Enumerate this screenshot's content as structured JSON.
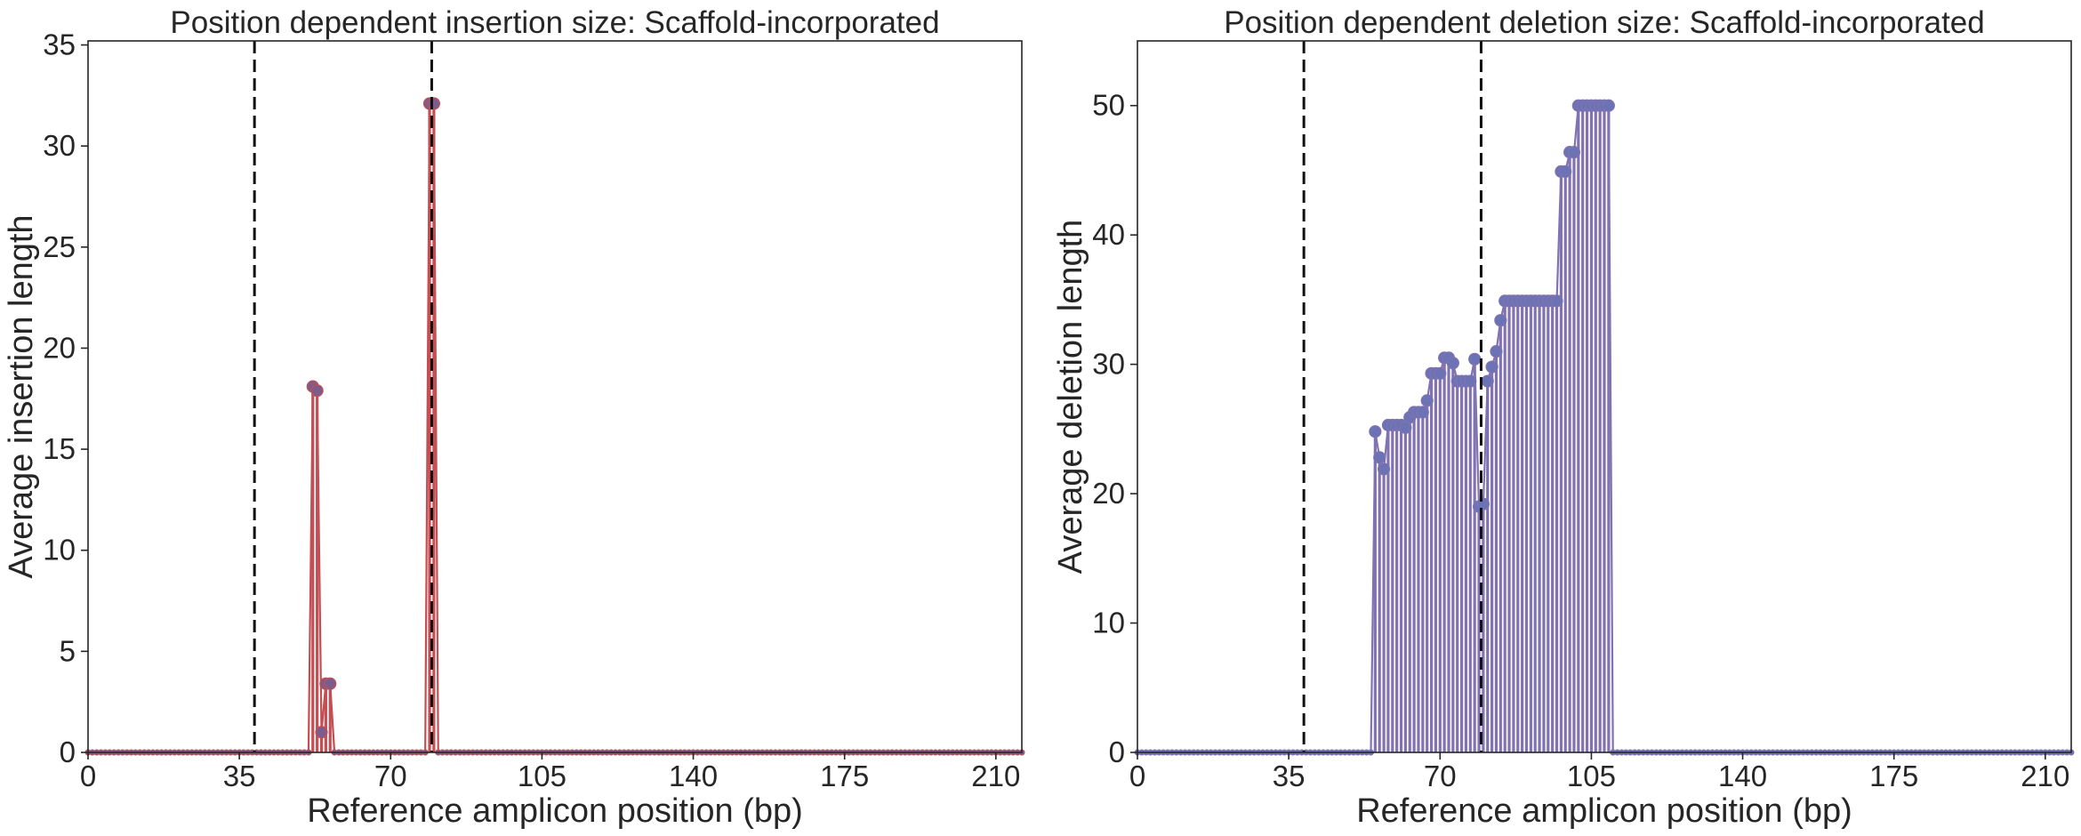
{
  "chart_data": [
    {
      "type": "line",
      "subtype": "stem",
      "title": "Position dependent insertion size: Scaffold-incorporated",
      "xlabel": "Reference amplicon position (bp)",
      "ylabel": "Average insertion length",
      "xlim": [
        0,
        216
      ],
      "ylim": [
        0,
        35.2
      ],
      "xticks": [
        0,
        35,
        70,
        105,
        140,
        175,
        210
      ],
      "yticks": [
        0,
        5,
        10,
        15,
        20,
        25,
        30,
        35
      ],
      "vlines": [
        38.5,
        79.5
      ],
      "color": "#c44e52",
      "marker_color": "#7f5b8c",
      "grid": false,
      "baseline_points": "all positions 0–216 at 0",
      "points": [
        {
          "x": 52,
          "y": 18.1
        },
        {
          "x": 53,
          "y": 17.9
        },
        {
          "x": 54,
          "y": 1.0
        },
        {
          "x": 55,
          "y": 3.4
        },
        {
          "x": 56,
          "y": 3.4
        },
        {
          "x": 79,
          "y": 32.1
        },
        {
          "x": 80,
          "y": 32.1
        }
      ]
    },
    {
      "type": "line",
      "subtype": "stem",
      "title": "Position dependent deletion size: Scaffold-incorporated",
      "xlabel": "Reference amplicon position (bp)",
      "ylabel": "Average deletion length",
      "xlim": [
        0,
        216
      ],
      "ylim": [
        0,
        55
      ],
      "xticks": [
        0,
        35,
        70,
        105,
        140,
        175,
        210
      ],
      "yticks": [
        0,
        10,
        20,
        30,
        40,
        50
      ],
      "vlines": [
        38.5,
        79.5
      ],
      "color": "#8172b2",
      "marker_color": "#6c73b4",
      "grid": false,
      "baseline_points": "all positions 0–216 at 0",
      "points": [
        {
          "x": 55,
          "y": 24.8
        },
        {
          "x": 56,
          "y": 22.8
        },
        {
          "x": 57,
          "y": 21.9
        },
        {
          "x": 58,
          "y": 25.3
        },
        {
          "x": 59,
          "y": 25.3
        },
        {
          "x": 60,
          "y": 25.3
        },
        {
          "x": 61,
          "y": 25.3
        },
        {
          "x": 62,
          "y": 25.1
        },
        {
          "x": 63,
          "y": 25.9
        },
        {
          "x": 64,
          "y": 26.3
        },
        {
          "x": 65,
          "y": 26.3
        },
        {
          "x": 66,
          "y": 26.3
        },
        {
          "x": 67,
          "y": 27.2
        },
        {
          "x": 68,
          "y": 29.3
        },
        {
          "x": 69,
          "y": 29.3
        },
        {
          "x": 70,
          "y": 29.3
        },
        {
          "x": 71,
          "y": 30.5
        },
        {
          "x": 72,
          "y": 30.5
        },
        {
          "x": 73,
          "y": 30.1
        },
        {
          "x": 74,
          "y": 28.7
        },
        {
          "x": 75,
          "y": 28.7
        },
        {
          "x": 76,
          "y": 28.7
        },
        {
          "x": 77,
          "y": 28.7
        },
        {
          "x": 78,
          "y": 30.4
        },
        {
          "x": 79,
          "y": 19.0
        },
        {
          "x": 80,
          "y": 19.2
        },
        {
          "x": 81,
          "y": 28.7
        },
        {
          "x": 82,
          "y": 29.8
        },
        {
          "x": 83,
          "y": 31.0
        },
        {
          "x": 84,
          "y": 33.4
        },
        {
          "x": 85,
          "y": 34.9
        },
        {
          "x": 86,
          "y": 34.9
        },
        {
          "x": 87,
          "y": 34.9
        },
        {
          "x": 88,
          "y": 34.9
        },
        {
          "x": 89,
          "y": 34.9
        },
        {
          "x": 90,
          "y": 34.9
        },
        {
          "x": 91,
          "y": 34.9
        },
        {
          "x": 92,
          "y": 34.9
        },
        {
          "x": 93,
          "y": 34.9
        },
        {
          "x": 94,
          "y": 34.9
        },
        {
          "x": 95,
          "y": 34.9
        },
        {
          "x": 96,
          "y": 34.9
        },
        {
          "x": 97,
          "y": 34.9
        },
        {
          "x": 98,
          "y": 44.9
        },
        {
          "x": 99,
          "y": 44.9
        },
        {
          "x": 100,
          "y": 46.4
        },
        {
          "x": 101,
          "y": 46.4
        },
        {
          "x": 102,
          "y": 50.0
        },
        {
          "x": 103,
          "y": 50.0
        },
        {
          "x": 104,
          "y": 50.0
        },
        {
          "x": 105,
          "y": 50.0
        },
        {
          "x": 106,
          "y": 50.0
        },
        {
          "x": 107,
          "y": 50.0
        },
        {
          "x": 108,
          "y": 50.0
        },
        {
          "x": 109,
          "y": 50.0
        }
      ]
    }
  ]
}
